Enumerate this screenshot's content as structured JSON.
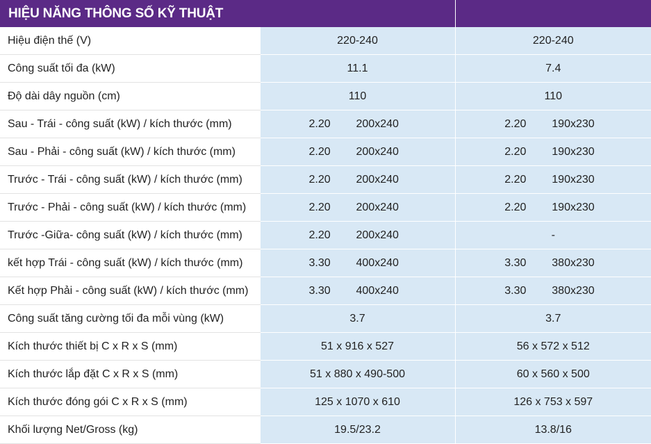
{
  "header": {
    "title": "HIỆU NĂNG THÔNG SỐ KỸ THUẬT"
  },
  "rows": [
    {
      "label": "Hiệu điện thế (V)",
      "v1": "220-240",
      "v2": "220-240"
    },
    {
      "label": "Công suất tối đa (kW)",
      "v1": "11.1",
      "v2": "7.4"
    },
    {
      "label": "Độ dài dây nguồn (cm)",
      "v1": "110",
      "v2": "110"
    },
    {
      "label": "Sau - Trái - công suất (kW) / kích thước (mm)",
      "v1_power": "2.20",
      "v1_size": "200x240",
      "v2_power": "2.20",
      "v2_size": "190x230"
    },
    {
      "label": "Sau - Phải - công suất (kW) / kích thước (mm)",
      "v1_power": "2.20",
      "v1_size": "200x240",
      "v2_power": "2.20",
      "v2_size": "190x230"
    },
    {
      "label": "Trước - Trái - công suất (kW) / kích thước (mm)",
      "v1_power": "2.20",
      "v1_size": "200x240",
      "v2_power": "2.20",
      "v2_size": "190x230"
    },
    {
      "label": "Trước - Phải - công suất (kW) / kích thước (mm)",
      "v1_power": "2.20",
      "v1_size": "200x240",
      "v2_power": "2.20",
      "v2_size": "190x230"
    },
    {
      "label": "Trước -Giữa- công suất (kW) / kích thước (mm)",
      "v1_power": "2.20",
      "v1_size": "200x240",
      "v2": "-"
    },
    {
      "label": "kết hợp Trái - công suất (kW) / kích thước (mm)",
      "v1_power": "3.30",
      "v1_size": "400x240",
      "v2_power": "3.30",
      "v2_size": "380x230"
    },
    {
      "label": "Kết hợp Phải - công suất (kW) / kích thước (mm)",
      "v1_power": "3.30",
      "v1_size": "400x240",
      "v2_power": "3.30",
      "v2_size": "380x230"
    },
    {
      "label": "Công suất tăng cường tối đa mỗi vùng (kW)",
      "v1": "3.7",
      "v2": "3.7"
    },
    {
      "label": "Kích thước thiết bị C x R x S (mm)",
      "v1": "51 x 916 x 527",
      "v2": "56 x 572 x 512"
    },
    {
      "label": "Kích thước lắp đặt C x R x S (mm)",
      "v1": "51 x 880 x 490-500",
      "v2": "60 x 560 x 500"
    },
    {
      "label": "Kích thước đóng gói C x R x S (mm)",
      "v1": "125 x 1070 x 610",
      "v2": "126 x 753 x 597"
    },
    {
      "label": "Khối lượng Net/Gross (kg)",
      "v1": "19.5/23.2",
      "v2": "13.8/16"
    }
  ]
}
